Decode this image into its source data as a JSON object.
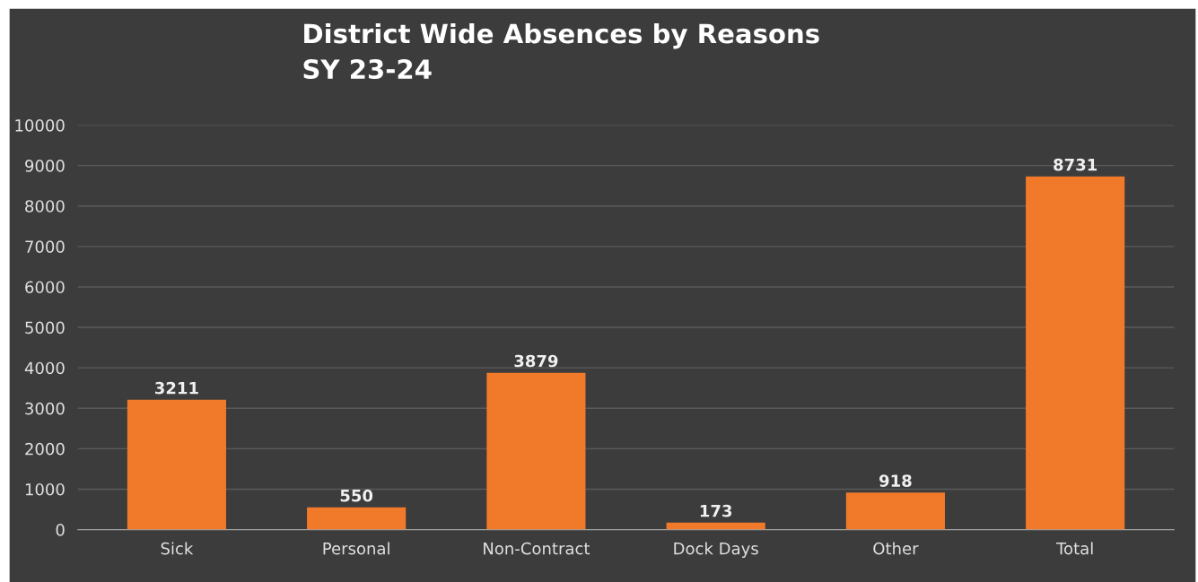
{
  "chart_data": {
    "type": "bar",
    "title": "District Wide Absences by Reasons\nSY 23-24",
    "categories": [
      "Sick",
      "Personal",
      "Non-Contract",
      "Dock Days",
      "Other",
      "Total"
    ],
    "values": [
      3211,
      550,
      3879,
      173,
      918,
      8731
    ],
    "color": "#f07a2a",
    "ylim": [
      0,
      10000
    ],
    "yticks": [
      0,
      1000,
      2000,
      3000,
      4000,
      5000,
      6000,
      7000,
      8000,
      9000,
      10000
    ],
    "grid": "y",
    "data_labels": true
  }
}
